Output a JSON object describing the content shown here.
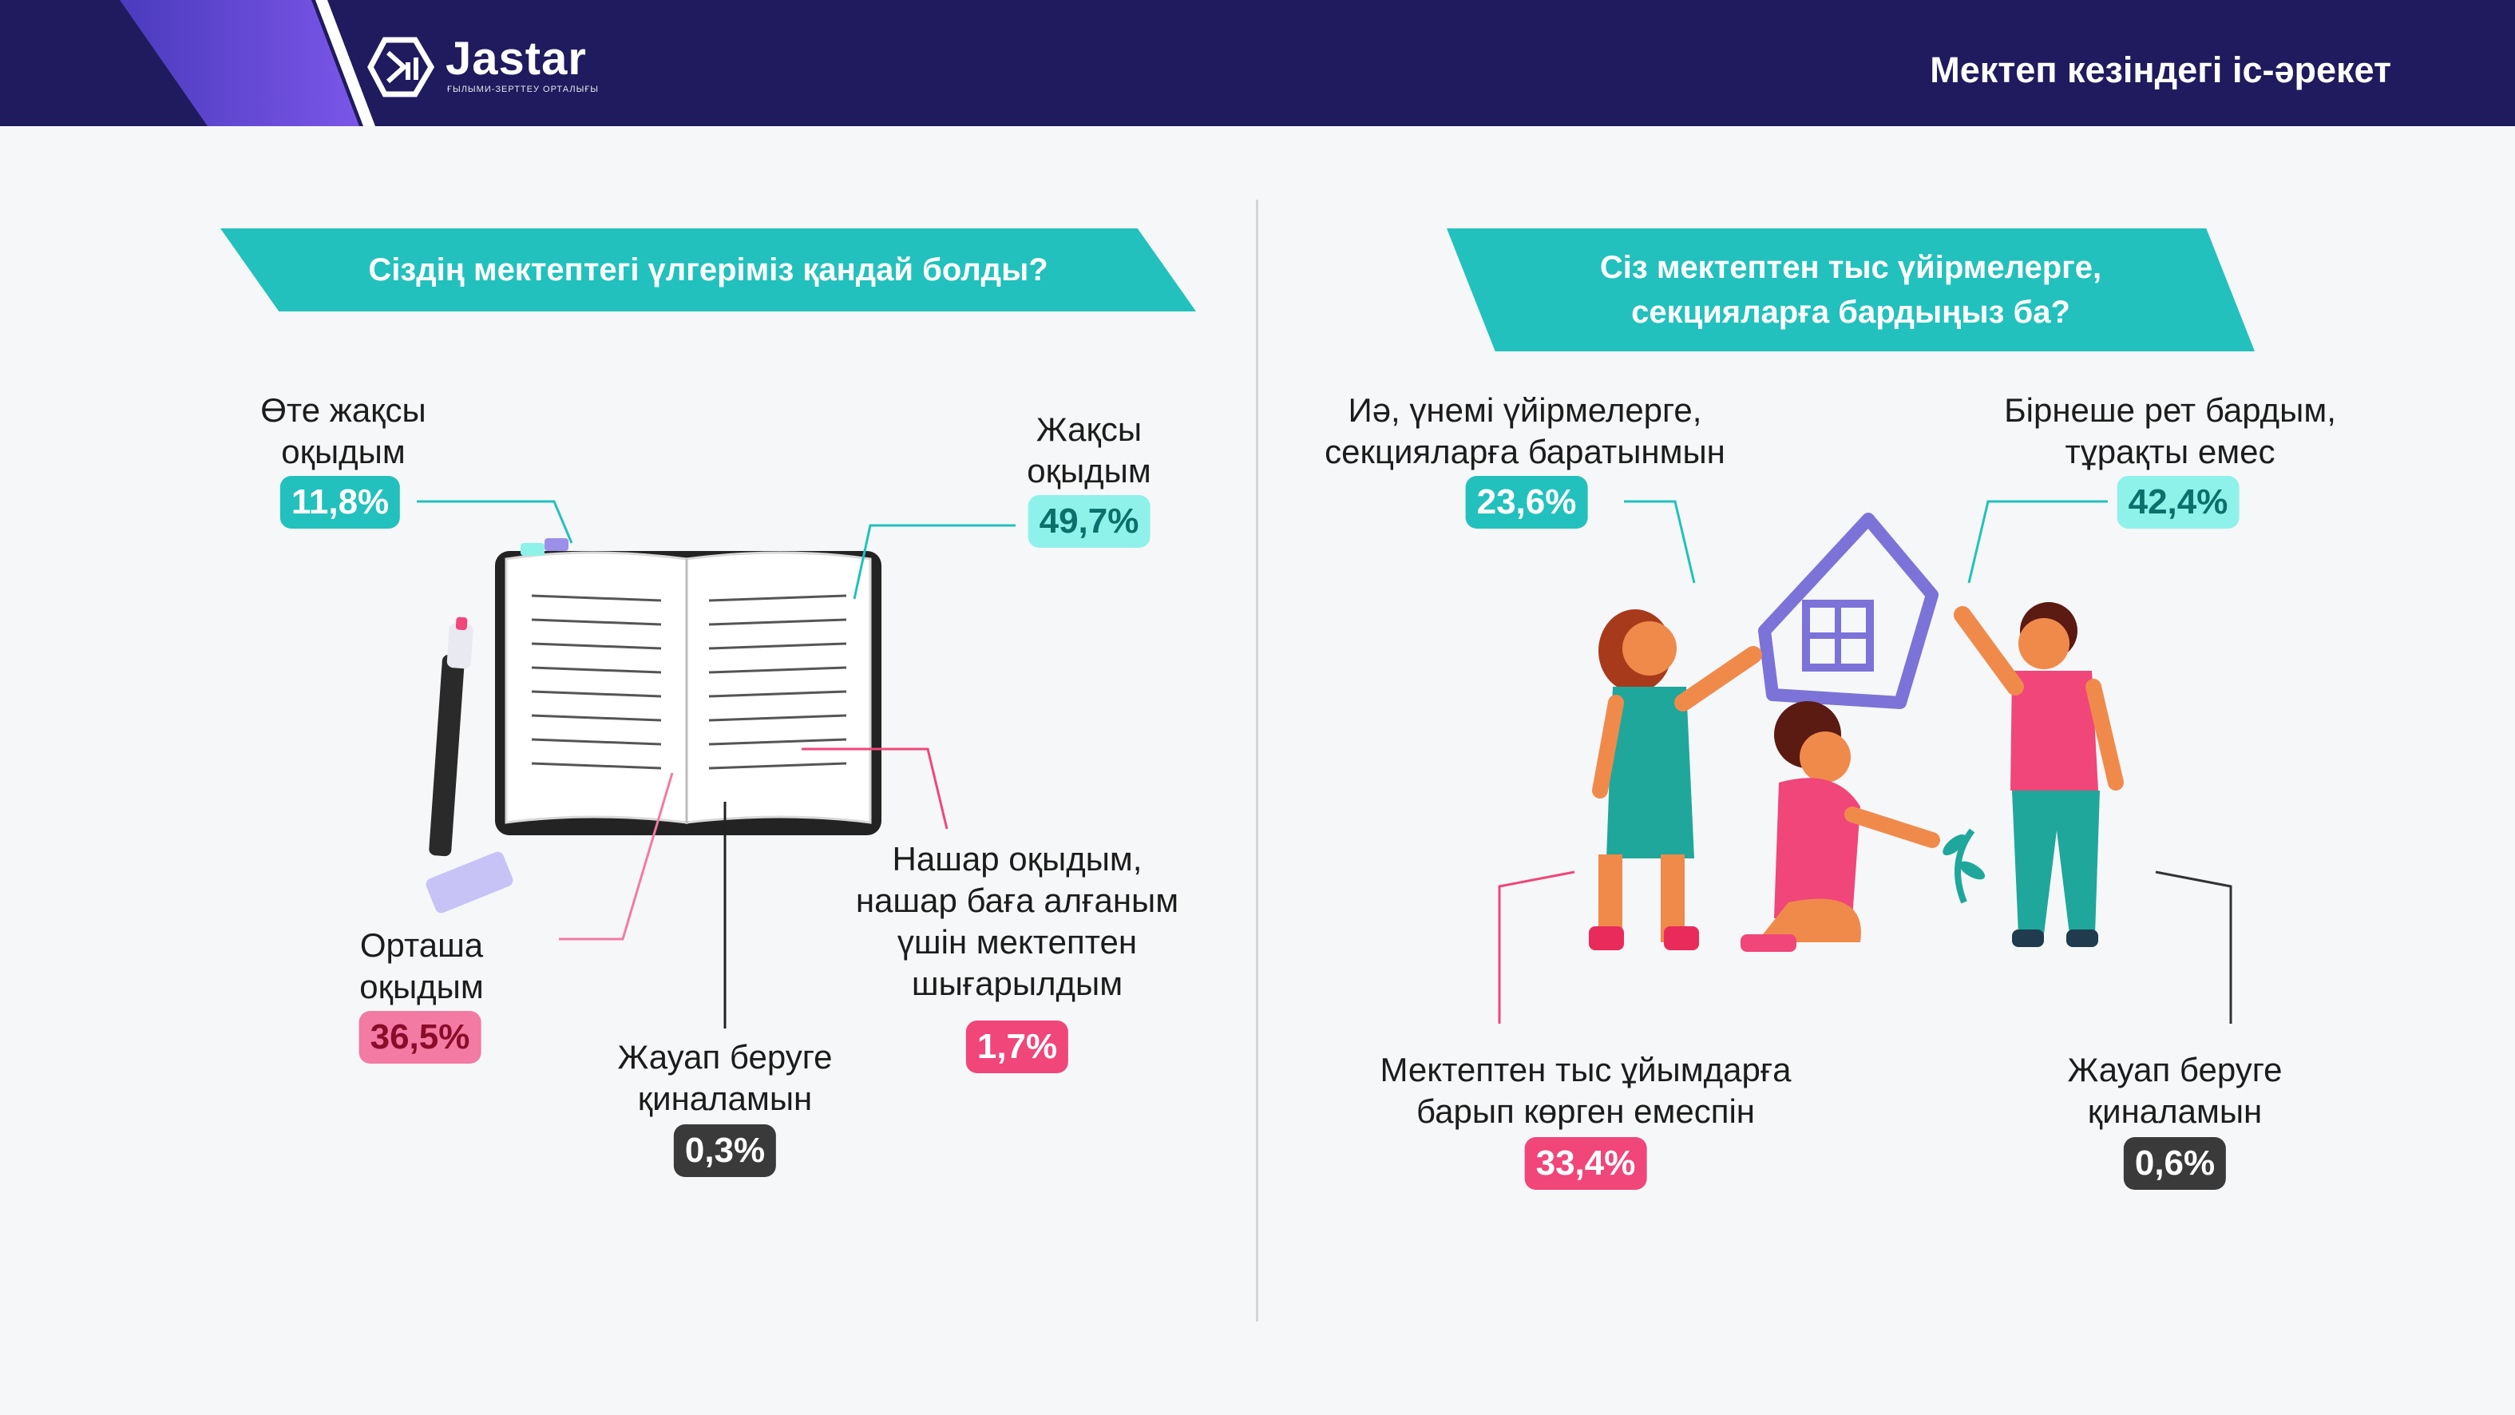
{
  "header": {
    "logo_text": "Jastar",
    "logo_subtitle": "ҒЫЛЫМИ-ЗЕРТТЕУ ОРТАЛЫҒЫ",
    "title": "Мектеп кезіндегі іс-әрекет"
  },
  "colors": {
    "header_bg": "#1f1b5e",
    "accent_teal": "#22c1bd",
    "light_teal": "#8ef2ea",
    "pink": "#f0467a",
    "light_pink": "#f27aa3",
    "dark": "#3a3a3a"
  },
  "left": {
    "question": "Сіздің мектептегі үлгеріміз қандай болды?",
    "answers": [
      {
        "line1": "Өте жақсы",
        "line2": "оқыдым",
        "line3": "",
        "line4": "",
        "value": "11,8%"
      },
      {
        "line1": "Жақсы",
        "line2": "оқыдым",
        "line3": "",
        "line4": "",
        "value": "49,7%"
      },
      {
        "line1": "Орташа",
        "line2": "оқыдым",
        "line3": "",
        "line4": "",
        "value": "36,5%"
      },
      {
        "line1": "Жауап беруге",
        "line2": "қиналамын",
        "line3": "",
        "line4": "",
        "value": "0,3%"
      },
      {
        "line1": "Нашар оқыдым,",
        "line2": "нашар баға алғаным",
        "line3": "үшін мектептен",
        "line4": "шығарылдым",
        "value": "1,7%"
      }
    ]
  },
  "right": {
    "question_line1": "Сіз мектептен тыс үйірмелерге,",
    "question_line2": "секцияларға бардыңыз ба?",
    "answers": [
      {
        "line1": "Иә, үнемі үйірмелерге,",
        "line2": "секцияларға баратынмын",
        "value": "23,6%"
      },
      {
        "line1": "Бірнеше рет бардым,",
        "line2": "тұрақты емес",
        "value": "42,4%"
      },
      {
        "line1": "Мектептен тыс ұйымдарға",
        "line2": "барып көрген емеспін",
        "value": "33,4%"
      },
      {
        "line1": "Жауап беруге",
        "line2": "қиналамын",
        "value": "0,6%"
      }
    ]
  }
}
